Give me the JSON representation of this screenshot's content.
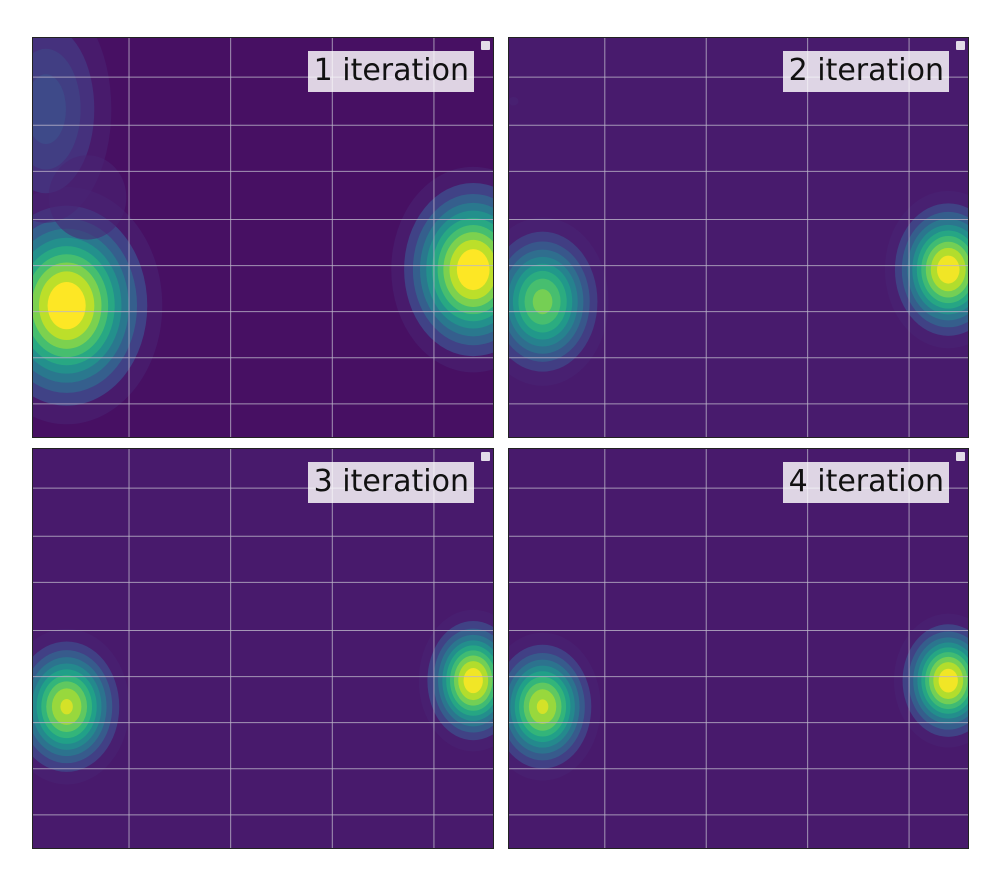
{
  "figure": {
    "colormap_low": "#440154",
    "colormap_high": "#fde725",
    "grid_color": "#bcb5c9",
    "frame_color": "#222222"
  },
  "chart_data": [
    {
      "type": "heatmap",
      "title": "1 iteration",
      "xlim": [
        0,
        1
      ],
      "ylim": [
        0,
        1
      ],
      "grid": true,
      "x_grid": [
        0.21,
        0.43,
        0.65,
        0.87
      ],
      "y_grid": [
        0.085,
        0.2,
        0.315,
        0.43,
        0.545,
        0.665,
        0.78,
        0.9
      ],
      "background": "#471063",
      "levels": 10,
      "blobs": [
        {
          "x": 0.075,
          "y": 0.33,
          "sx": 0.105,
          "sy": 0.15,
          "peak": 1.0
        },
        {
          "x": 0.955,
          "y": 0.42,
          "sx": 0.09,
          "sy": 0.13,
          "peak": 1.0
        },
        {
          "x": 0.03,
          "y": 0.82,
          "sx": 0.09,
          "sy": 0.18,
          "peak": 0.42
        },
        {
          "x": 0.12,
          "y": 0.6,
          "sx": 0.08,
          "sy": 0.1,
          "peak": 0.18
        }
      ]
    },
    {
      "type": "heatmap",
      "title": "2 iteration",
      "xlim": [
        0,
        1
      ],
      "ylim": [
        0,
        1
      ],
      "grid": true,
      "x_grid": [
        0.21,
        0.43,
        0.65,
        0.87
      ],
      "y_grid": [
        0.085,
        0.2,
        0.315,
        0.43,
        0.545,
        0.665,
        0.78,
        0.9
      ],
      "background": "#481b6d",
      "levels": 10,
      "blobs": [
        {
          "x": 0.075,
          "y": 0.34,
          "sx": 0.075,
          "sy": 0.11,
          "peak": 0.86
        },
        {
          "x": 0.955,
          "y": 0.42,
          "sx": 0.07,
          "sy": 0.1,
          "peak": 0.98
        },
        {
          "x": 0.012,
          "y": 0.84,
          "sx": 0.016,
          "sy": 0.016,
          "peak": 0.12
        }
      ]
    },
    {
      "type": "heatmap",
      "title": "3 iteration",
      "xlim": [
        0,
        1
      ],
      "ylim": [
        0,
        1
      ],
      "grid": true,
      "x_grid": [
        0.21,
        0.43,
        0.65,
        0.87
      ],
      "y_grid": [
        0.085,
        0.2,
        0.315,
        0.43,
        0.545,
        0.665,
        0.78,
        0.9
      ],
      "background": "#481a6c",
      "levels": 10,
      "blobs": [
        {
          "x": 0.075,
          "y": 0.355,
          "sx": 0.07,
          "sy": 0.1,
          "peak": 0.93
        },
        {
          "x": 0.955,
          "y": 0.42,
          "sx": 0.06,
          "sy": 0.09,
          "peak": 0.98
        }
      ]
    },
    {
      "type": "heatmap",
      "title": "4 iteration",
      "xlim": [
        0,
        1
      ],
      "ylim": [
        0,
        1
      ],
      "grid": true,
      "x_grid": [
        0.21,
        0.43,
        0.65,
        0.87
      ],
      "y_grid": [
        0.085,
        0.2,
        0.315,
        0.43,
        0.545,
        0.665,
        0.78,
        0.9
      ],
      "background": "#481a6c",
      "levels": 10,
      "blobs": [
        {
          "x": 0.075,
          "y": 0.355,
          "sx": 0.065,
          "sy": 0.095,
          "peak": 0.93
        },
        {
          "x": 0.955,
          "y": 0.42,
          "sx": 0.06,
          "sy": 0.085,
          "peak": 0.98
        }
      ]
    }
  ]
}
